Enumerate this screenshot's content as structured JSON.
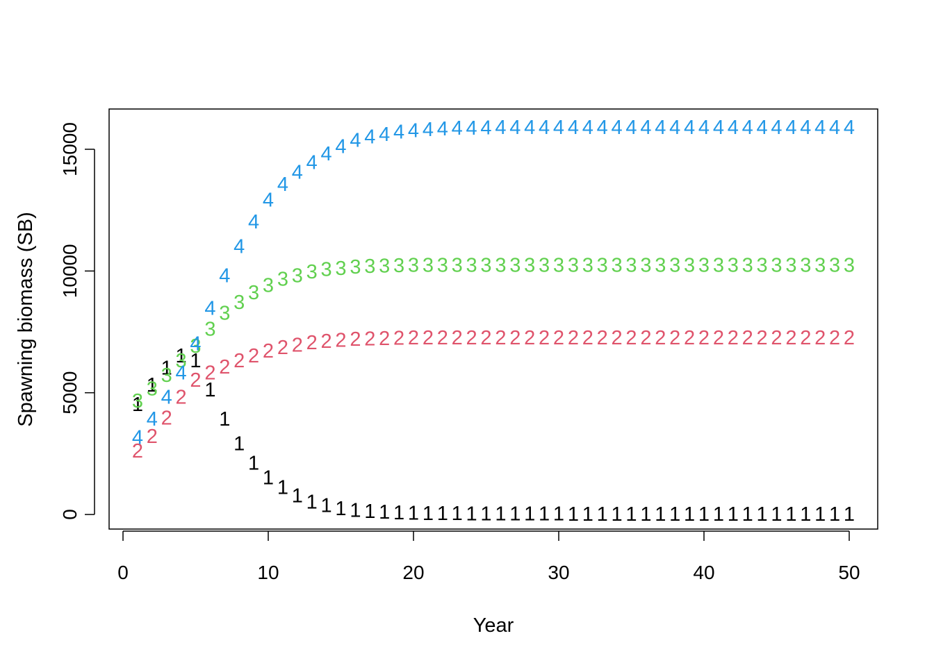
{
  "chart_data": {
    "type": "scatter",
    "title": "",
    "xlabel": "Year",
    "ylabel": "Spawning biomass (SB)",
    "xlim": [
      0,
      50
    ],
    "ylim": [
      0,
      15000
    ],
    "xticks": [
      "0",
      "10",
      "20",
      "30",
      "40",
      "50"
    ],
    "yticks": [
      "0",
      "5000",
      "10000",
      "15000"
    ],
    "grid": false,
    "legend": "none",
    "x": [
      1,
      2,
      3,
      4,
      5,
      6,
      7,
      8,
      9,
      10,
      11,
      12,
      13,
      14,
      15,
      16,
      17,
      18,
      19,
      20,
      21,
      22,
      23,
      24,
      25,
      26,
      27,
      28,
      29,
      30,
      31,
      32,
      33,
      34,
      35,
      36,
      37,
      38,
      39,
      40,
      41,
      42,
      43,
      44,
      45,
      46,
      47,
      48,
      49,
      50
    ],
    "series": [
      {
        "symbol": "1",
        "color": "#000000",
        "values": [
          4500,
          5300,
          6000,
          6500,
          6300,
          5100,
          3900,
          2900,
          2100,
          1500,
          1100,
          750,
          500,
          350,
          230,
          160,
          110,
          80,
          60,
          45,
          35,
          28,
          22,
          18,
          15,
          13,
          11,
          10,
          9,
          8,
          7,
          7,
          6,
          6,
          5,
          5,
          5,
          5,
          4,
          4,
          4,
          4,
          4,
          4,
          4,
          4,
          4,
          4,
          4,
          4
        ]
      },
      {
        "symbol": "2",
        "color": "#DF536B",
        "values": [
          2600,
          3200,
          3950,
          4800,
          5500,
          5800,
          6050,
          6300,
          6500,
          6700,
          6850,
          6950,
          7050,
          7100,
          7150,
          7180,
          7200,
          7220,
          7230,
          7240,
          7250,
          7250,
          7250,
          7250,
          7250,
          7250,
          7250,
          7250,
          7250,
          7250,
          7250,
          7250,
          7250,
          7250,
          7250,
          7250,
          7250,
          7250,
          7250,
          7250,
          7250,
          7250,
          7250,
          7250,
          7250,
          7250,
          7250,
          7250,
          7250,
          7250
        ]
      },
      {
        "symbol": "3",
        "color": "#61D04F",
        "values": [
          4650,
          5150,
          5700,
          6300,
          6900,
          7600,
          8250,
          8700,
          9100,
          9400,
          9650,
          9800,
          9950,
          10050,
          10100,
          10150,
          10180,
          10200,
          10210,
          10220,
          10230,
          10230,
          10230,
          10230,
          10230,
          10230,
          10230,
          10230,
          10230,
          10230,
          10230,
          10230,
          10230,
          10230,
          10230,
          10230,
          10230,
          10230,
          10230,
          10230,
          10230,
          10230,
          10230,
          10230,
          10230,
          10230,
          10230,
          10230,
          10230,
          10230
        ]
      },
      {
        "symbol": "4",
        "color": "#2297E6",
        "values": [
          3150,
          3900,
          4800,
          5800,
          7000,
          8450,
          9800,
          11000,
          12000,
          12900,
          13550,
          14050,
          14450,
          14800,
          15100,
          15350,
          15500,
          15600,
          15700,
          15760,
          15800,
          15830,
          15850,
          15860,
          15870,
          15880,
          15880,
          15880,
          15880,
          15880,
          15880,
          15880,
          15880,
          15880,
          15880,
          15880,
          15880,
          15880,
          15880,
          15880,
          15880,
          15880,
          15880,
          15880,
          15880,
          15880,
          15880,
          15880,
          15880,
          15880
        ]
      }
    ]
  }
}
